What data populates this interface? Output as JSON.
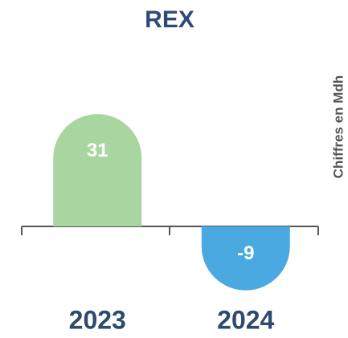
{
  "chart_data": {
    "type": "bar",
    "title": "REX",
    "y_label": "Chiffres en Mdh",
    "categories": [
      "2023",
      "2024"
    ],
    "values": [
      31,
      -9
    ],
    "colors": [
      "#a8d5a0",
      "#4ba9e1"
    ]
  }
}
